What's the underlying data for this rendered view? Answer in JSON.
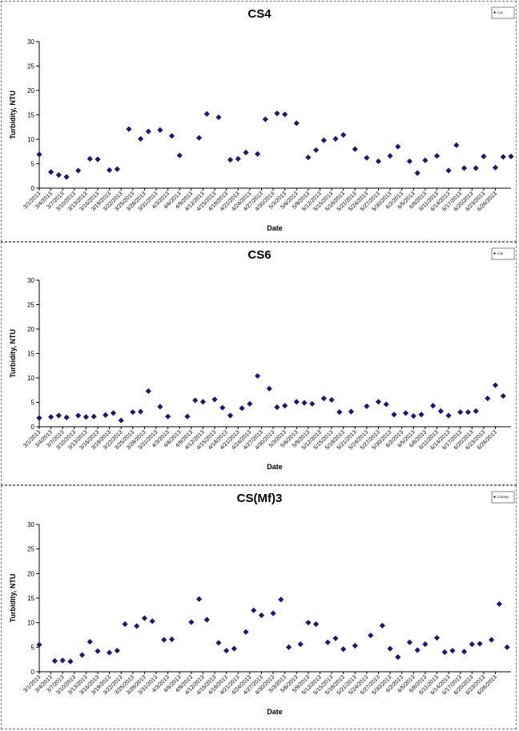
{
  "chart_data": [
    {
      "type": "scatter",
      "title": "CS4",
      "xlabel": "Date",
      "ylabel": "Turbidity, NTU",
      "ylim": [
        0,
        30
      ],
      "yticks": [
        "0",
        "5",
        "10",
        "15",
        "20",
        "25",
        "30"
      ],
      "legend_placement": "top-right",
      "grid": false,
      "color": "#1a1a6e",
      "series": [
        {
          "legend": "CS4",
          "x": [
            "3/1/2013",
            "3/4/2013",
            "3/6/2013",
            "3/8/2013",
            "3/11/2013",
            "3/14/2013",
            "3/16/2013",
            "3/19/2013",
            "3/21/2013",
            "3/24/2013",
            "3/27/2013",
            "3/29/2013",
            "4/1/2013",
            "4/4/2013",
            "4/6/2013",
            "4/11/2013",
            "4/13/2013",
            "4/16/2013",
            "4/19/2013",
            "4/21/2013",
            "4/23/2013",
            "4/26/2013",
            "4/28/2013",
            "5/1/2013",
            "5/3/2013",
            "5/6/2013",
            "5/9/2013",
            "5/11/2013",
            "5/13/2013",
            "5/16/2013",
            "5/18/2013",
            "5/21/2013",
            "5/24/2013",
            "5/27/2013",
            "5/30/2013",
            "6/1/2013",
            "6/4/2013",
            "6/6/2013",
            "6/8/2013",
            "6/11/2013",
            "6/14/2013",
            "6/16/2013",
            "6/18/2013",
            "6/21/2013",
            "6/23/2013",
            "6/26/2013",
            "6/28/2013",
            "6/30/2013"
          ],
          "y": [
            6.9,
            3.3,
            2.7,
            2.3,
            3.6,
            6.0,
            5.9,
            3.7,
            3.9,
            12.1,
            10.1,
            11.6,
            11.9,
            10.7,
            6.7,
            10.3,
            15.2,
            14.5,
            5.8,
            6.0,
            7.3,
            7.0,
            14.1,
            15.3,
            15.1,
            13.3,
            6.3,
            7.8,
            9.8,
            10.1,
            10.9,
            8.0,
            6.2,
            5.5,
            6.6,
            8.5,
            5.5,
            3.1,
            5.7,
            6.6,
            3.6,
            8.8,
            4.1,
            4.1,
            6.5,
            4.2,
            6.4,
            6.5
          ]
        }
      ],
      "x_tick_labels": [
        "3/1/2013",
        "3/4/2013",
        "3/7/2013",
        "3/10/2013",
        "3/13/2013",
        "3/16/2013",
        "3/19/2013",
        "3/22/2013",
        "3/25/2013",
        "3/28/2013",
        "3/31/2013",
        "4/3/2013",
        "4/6/2013",
        "4/9/2013",
        "4/12/2013",
        "4/15/2013",
        "4/18/2013",
        "4/21/2013",
        "4/24/2013",
        "4/27/2013",
        "4/30/2013",
        "5/3/2013",
        "5/6/2013",
        "5/9/2013",
        "5/12/2013",
        "5/15/2013",
        "5/18/2013",
        "5/21/2013",
        "5/24/2013",
        "5/27/2013",
        "5/30/2013",
        "6/2/2013",
        "6/5/2013",
        "6/8/2013",
        "6/11/2013",
        "6/14/2013",
        "6/17/2013",
        "6/20/2013",
        "6/23/2013",
        "6/26/2013"
      ]
    },
    {
      "type": "scatter",
      "title": "CS6",
      "xlabel": "Date",
      "ylabel": "Turbidity, NTU",
      "ylim": [
        0,
        30
      ],
      "yticks": [
        "0",
        "5",
        "10",
        "15",
        "20",
        "25",
        "30"
      ],
      "legend_placement": "top-right",
      "grid": false,
      "color": "#1a1a6e",
      "series": [
        {
          "legend": "CS6",
          "x": [
            "3/1/2013",
            "3/4/2013",
            "3/6/2013",
            "3/8/2013",
            "3/11/2013",
            "3/13/2013",
            "3/15/2013",
            "3/18/2013",
            "3/20/2013",
            "3/22/2013",
            "3/25/2013",
            "3/27/2013",
            "3/29/2013",
            "4/1/2013",
            "4/3/2013",
            "4/8/2013",
            "4/10/2013",
            "4/12/2013",
            "4/15/2013",
            "4/17/2013",
            "4/19/2013",
            "4/22/2013",
            "4/24/2013",
            "4/26/2013",
            "4/29/2013",
            "5/1/2013",
            "5/3/2013",
            "5/6/2013",
            "5/8/2013",
            "5/10/2013",
            "5/13/2013",
            "5/15/2013",
            "5/17/2013",
            "5/20/2013",
            "5/24/2013",
            "5/27/2013",
            "5/29/2013",
            "5/31/2013",
            "6/3/2013",
            "6/5/2013",
            "6/7/2013",
            "6/10/2013",
            "6/12/2013",
            "6/14/2013",
            "6/17/2013",
            "6/19/2013",
            "6/21/2013",
            "6/24/2013",
            "6/26/2013",
            "6/28/2013"
          ],
          "y": [
            1.8,
            2.0,
            2.3,
            1.9,
            2.3,
            2.0,
            2.1,
            2.4,
            2.8,
            1.3,
            3.0,
            3.1,
            7.3,
            4.1,
            2.1,
            2.1,
            5.4,
            5.1,
            5.6,
            3.9,
            2.3,
            3.8,
            4.7,
            10.4,
            7.8,
            4.0,
            4.3,
            5.1,
            4.9,
            4.7,
            5.8,
            5.5,
            3.0,
            3.1,
            4.2,
            5.1,
            4.6,
            2.5,
            2.8,
            2.2,
            2.5,
            4.3,
            3.2,
            2.3,
            3.0,
            3.0,
            3.2,
            5.8,
            8.5,
            6.3
          ]
        }
      ],
      "x_tick_labels": [
        "3/1/2013",
        "3/4/2013",
        "3/7/2013",
        "3/10/2013",
        "3/13/2013",
        "3/16/2013",
        "3/19/2013",
        "3/22/2013",
        "3/25/2013",
        "3/28/2013",
        "3/31/2013",
        "4/3/2013",
        "4/6/2013",
        "4/9/2013",
        "4/12/2013",
        "4/15/2013",
        "4/18/2013",
        "4/21/2013",
        "4/24/2013",
        "4/27/2013",
        "4/30/2013",
        "5/3/2013",
        "5/6/2013",
        "5/9/2013",
        "5/12/2013",
        "5/15/2013",
        "5/18/2013",
        "5/21/2013",
        "5/24/2013",
        "5/27/2013",
        "5/30/2013",
        "6/2/2013",
        "6/5/2013",
        "6/8/2013",
        "6/11/2013",
        "6/14/2013",
        "6/17/2013",
        "6/20/2013",
        "6/23/2013",
        "6/26/2013"
      ]
    },
    {
      "type": "scatter",
      "title": "CS(Mf)3",
      "xlabel": "Date",
      "ylabel": "Turbidity, NTU",
      "ylim": [
        0,
        30
      ],
      "yticks": [
        "0",
        "5",
        "10",
        "15",
        "20",
        "25",
        "30"
      ],
      "legend_placement": "top-right",
      "grid": false,
      "color": "#1a1a6e",
      "series": [
        {
          "legend": "CS(Mf)3",
          "x": [
            "3/1/2013",
            "3/5/2013",
            "3/7/2013",
            "3/9/2013",
            "3/12/2013",
            "3/14/2013",
            "3/16/2013",
            "3/19/2013",
            "3/21/2013",
            "3/23/2013",
            "3/26/2013",
            "3/28/2013",
            "3/30/2013",
            "4/2/2013",
            "4/4/2013",
            "4/9/2013",
            "4/11/2013",
            "4/13/2013",
            "4/16/2013",
            "4/18/2013",
            "4/20/2013",
            "4/23/2013",
            "4/25/2013",
            "4/27/2013",
            "4/30/2013",
            "5/2/2013",
            "5/4/2013",
            "5/7/2013",
            "5/9/2013",
            "5/11/2013",
            "5/14/2013",
            "5/16/2013",
            "5/18/2013",
            "5/21/2013",
            "5/25/2013",
            "5/28/2013",
            "5/30/2013",
            "6/1/2013",
            "6/4/2013",
            "6/6/2013",
            "6/8/2013",
            "6/11/2013",
            "6/13/2013",
            "6/15/2013",
            "6/18/2013",
            "6/20/2013",
            "6/22/2013",
            "6/25/2013",
            "6/27/2013",
            "6/29/2013"
          ],
          "y": [
            5.5,
            2.2,
            2.3,
            2.1,
            3.4,
            6.1,
            4.2,
            3.9,
            4.3,
            9.7,
            9.3,
            10.9,
            10.3,
            6.5,
            6.6,
            10.1,
            14.8,
            10.6,
            5.9,
            4.3,
            4.7,
            8.1,
            12.5,
            11.5,
            11.9,
            14.7,
            5.0,
            5.6,
            10.0,
            9.7,
            6.0,
            6.8,
            4.6,
            5.3,
            7.4,
            9.4,
            4.7,
            3.0,
            6.0,
            4.4,
            5.6,
            6.9,
            4.0,
            4.3,
            4.1,
            5.6,
            5.7,
            6.5,
            13.8,
            5.0
          ]
        }
      ],
      "x_tick_labels": [
        "3/1/2013",
        "3/4/2013",
        "3/7/2013",
        "3/10/2013",
        "3/13/2013",
        "3/16/2013",
        "3/19/2013",
        "3/22/2013",
        "3/25/2013",
        "3/28/2013",
        "3/31/2013",
        "4/3/2013",
        "4/6/2013",
        "4/9/2013",
        "4/12/2013",
        "4/15/2013",
        "4/18/2013",
        "4/21/2013",
        "4/24/2013",
        "4/27/2013",
        "4/30/2013",
        "5/3/2013",
        "5/6/2013",
        "5/9/2013",
        "5/12/2013",
        "5/15/2013",
        "5/18/2013",
        "5/21/2013",
        "5/24/2013",
        "5/27/2013",
        "5/30/2013",
        "6/2/2013",
        "6/5/2013",
        "6/8/2013",
        "6/11/2013",
        "6/14/2013",
        "6/17/2013",
        "6/20/2013",
        "6/23/2013",
        "6/26/2013"
      ]
    }
  ]
}
